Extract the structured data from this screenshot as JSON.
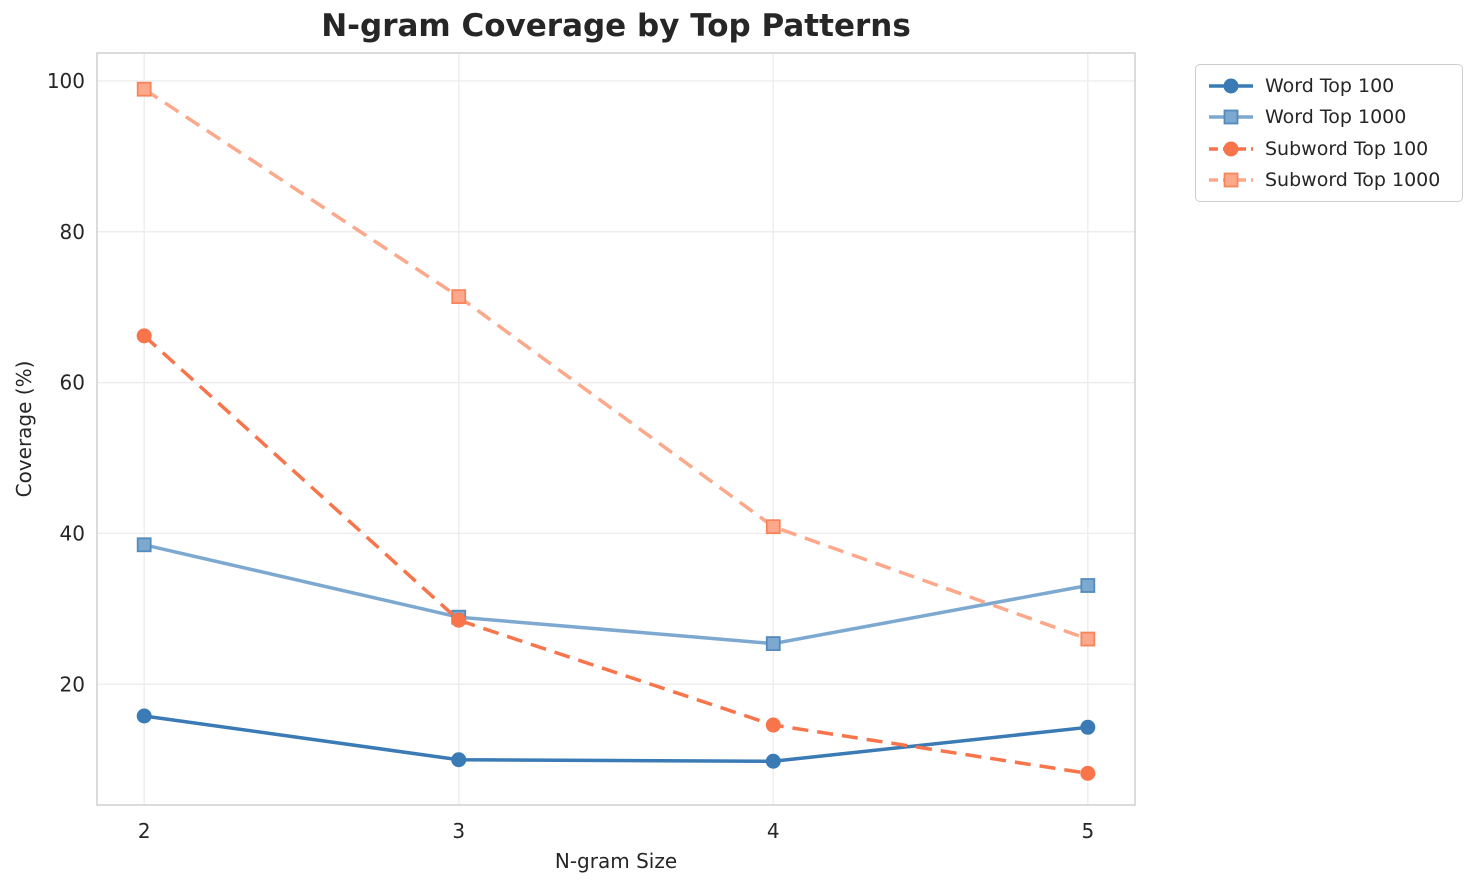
{
  "chart_data": {
    "type": "line",
    "title": "N-gram Coverage by Top Patterns",
    "xlabel": "N-gram Size",
    "ylabel": "Coverage (%)",
    "x": [
      2,
      3,
      4,
      5
    ],
    "xtick_labels": [
      "2",
      "3",
      "4",
      "5"
    ],
    "ytick_labels": [
      "20",
      "40",
      "60",
      "80",
      "100"
    ],
    "yticks": [
      20,
      40,
      60,
      80,
      100
    ],
    "xlim": [
      1.85,
      5.15
    ],
    "ylim": [
      4,
      103.7
    ],
    "grid": true,
    "legend_position": "outside-top-right",
    "series": [
      {
        "name": "Word Top 100",
        "values": [
          15.8,
          10.0,
          9.8,
          14.3
        ],
        "color": "#3a7ab5",
        "marker_edge": "#3a7ab5",
        "line_style": "solid",
        "marker": "circle"
      },
      {
        "name": "Word Top 1000",
        "values": [
          38.5,
          28.9,
          25.4,
          33.1
        ],
        "color": "#7da8cf",
        "marker_edge": "#548bbd",
        "line_style": "solid",
        "marker": "square"
      },
      {
        "name": "Subword Top 100",
        "values": [
          66.2,
          28.5,
          14.6,
          8.2
        ],
        "color": "#f8744a",
        "marker_edge": "#f8744a",
        "line_style": "dashed",
        "marker": "circle"
      },
      {
        "name": "Subword Top 1000",
        "values": [
          98.9,
          71.4,
          40.9,
          26.0
        ],
        "color": "#fba88b",
        "marker_edge": "#f8845c",
        "line_style": "dashed",
        "marker": "square"
      }
    ],
    "colors": {
      "text": "#262626",
      "grid": "#ededed",
      "plot_border": "#cccccc",
      "background": "#ffffff"
    }
  }
}
